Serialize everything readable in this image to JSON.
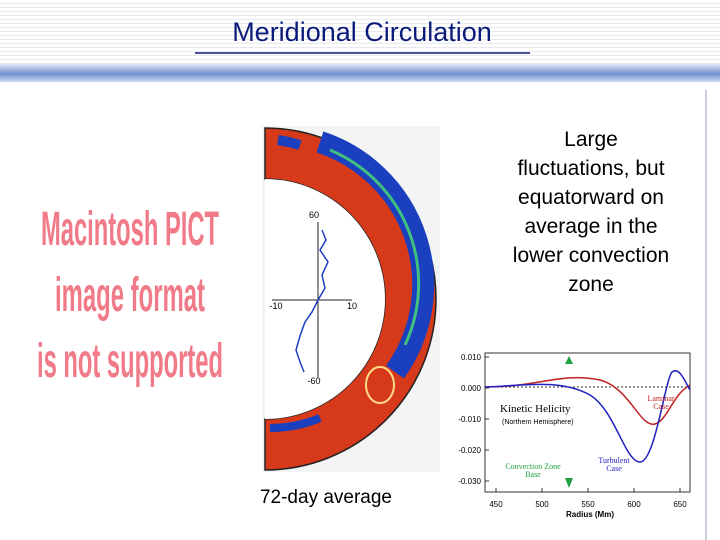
{
  "header": {
    "title": "Meridional Circulation"
  },
  "placeholder": {
    "lines": [
      "Macintosh PICT",
      "image format",
      "is not supported"
    ]
  },
  "left_figure": {
    "axis_labels": [
      60,
      -10,
      10,
      -60
    ],
    "caption": "72-day average"
  },
  "body_text": {
    "lines": [
      "Large",
      "fluctuations, but",
      "equatorward on",
      "average in the",
      "lower convection",
      "zone"
    ]
  },
  "helicity_plot": {
    "yticks": [
      {
        "value": 0.01,
        "label": "0.010"
      },
      {
        "value": 0,
        "label": "0.000"
      },
      {
        "value": -0.01,
        "label": "-0.010"
      },
      {
        "value": -0.02,
        "label": "-0.020"
      },
      {
        "value": -0.03,
        "label": "-0.030"
      }
    ],
    "xticks": [
      450,
      500,
      550,
      600,
      650
    ],
    "xlabel": "Radius (Mm)",
    "title": "Kinetic Helicity",
    "subtitle": "(Northern Hemisphere)",
    "laminar": [
      "Laminar",
      "Case"
    ],
    "turbulent": [
      "Turbulent",
      "Case"
    ],
    "base": [
      "Convection Zone",
      "Base"
    ]
  }
}
